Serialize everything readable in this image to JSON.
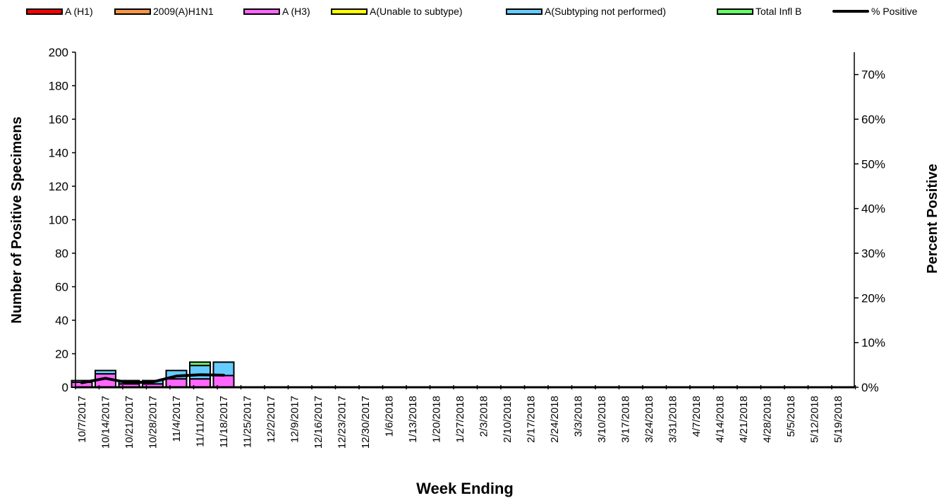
{
  "chart_data": {
    "type": "bar",
    "stacked": true,
    "title": "",
    "xlabel": "Week Ending",
    "ylabel": "Number of  Positive Specimens",
    "y2label": "Percent Positive",
    "ylim": [
      0,
      200
    ],
    "yticks": [
      "0",
      "20",
      "40",
      "60",
      "80",
      "100",
      "120",
      "140",
      "160",
      "180",
      "200"
    ],
    "y2lim": [
      0,
      0.75
    ],
    "y2ticks": [
      "0%",
      "10%",
      "20%",
      "30%",
      "40%",
      "50%",
      "60%",
      "70%"
    ],
    "grid": false,
    "legend_position": "top",
    "categories": [
      "10/7/2017",
      "10/14/2017",
      "10/21/2017",
      "10/28/2017",
      "11/4/2017",
      "11/11/2017",
      "11/18/2017",
      "11/25/2017",
      "12/2/2017",
      "12/9/2017",
      "12/16/2017",
      "12/23/2017",
      "12/30/2017",
      "1/6/2018",
      "1/13/2018",
      "1/20/2018",
      "1/27/2018",
      "2/3/2018",
      "2/10/2018",
      "2/17/2018",
      "2/24/2018",
      "3/3/2018",
      "3/10/2018",
      "3/17/2018",
      "3/24/2018",
      "3/31/2018",
      "4/7/2018",
      "4/14/2018",
      "4/21/2018",
      "4/28/2018",
      "5/5/2018",
      "5/12/2018",
      "5/19/2018"
    ],
    "series": [
      {
        "name": "A (H1)",
        "color": "#FF0000",
        "values": [
          0,
          0,
          0,
          0,
          0,
          0,
          0,
          0,
          0,
          0,
          0,
          0,
          0,
          0,
          0,
          0,
          0,
          0,
          0,
          0,
          0,
          0,
          0,
          0,
          0,
          0,
          0,
          0,
          0,
          0,
          0,
          0,
          0
        ]
      },
      {
        "name": "2009(A)H1N1",
        "color": "#F79646",
        "values": [
          0,
          0,
          0,
          0,
          0,
          0,
          0,
          0,
          0,
          0,
          0,
          0,
          0,
          0,
          0,
          0,
          0,
          0,
          0,
          0,
          0,
          0,
          0,
          0,
          0,
          0,
          0,
          0,
          0,
          0,
          0,
          0,
          0
        ]
      },
      {
        "name": "A (H3)",
        "color": "#FF66FF",
        "values": [
          3,
          8,
          2,
          2,
          5,
          5,
          7,
          0,
          0,
          0,
          0,
          0,
          0,
          0,
          0,
          0,
          0,
          0,
          0,
          0,
          0,
          0,
          0,
          0,
          0,
          0,
          0,
          0,
          0,
          0,
          0,
          0,
          0
        ]
      },
      {
        "name": "A(Unable to subtype)",
        "color": "#FFFF00",
        "values": [
          0,
          0,
          0,
          0,
          0,
          0,
          0,
          0,
          0,
          0,
          0,
          0,
          0,
          0,
          0,
          0,
          0,
          0,
          0,
          0,
          0,
          0,
          0,
          0,
          0,
          0,
          0,
          0,
          0,
          0,
          0,
          0,
          0
        ]
      },
      {
        "name": "A(Subtyping not performed)",
        "color": "#66CCFF",
        "values": [
          1,
          2,
          2,
          2,
          5,
          8,
          8,
          0,
          0,
          0,
          0,
          0,
          0,
          0,
          0,
          0,
          0,
          0,
          0,
          0,
          0,
          0,
          0,
          0,
          0,
          0,
          0,
          0,
          0,
          0,
          0,
          0,
          0
        ]
      },
      {
        "name": "Total Infl B",
        "color": "#66FF66",
        "values": [
          0,
          0,
          0,
          0,
          0,
          2,
          0,
          0,
          0,
          0,
          0,
          0,
          0,
          0,
          0,
          0,
          0,
          0,
          0,
          0,
          0,
          0,
          0,
          0,
          0,
          0,
          0,
          0,
          0,
          0,
          0,
          0,
          0
        ]
      }
    ],
    "line_series": {
      "name": "% Positive",
      "color": "#000000",
      "axis": "right",
      "values": [
        0.01,
        0.02,
        0.01,
        0.012,
        0.025,
        0.028,
        0.027
      ]
    }
  }
}
